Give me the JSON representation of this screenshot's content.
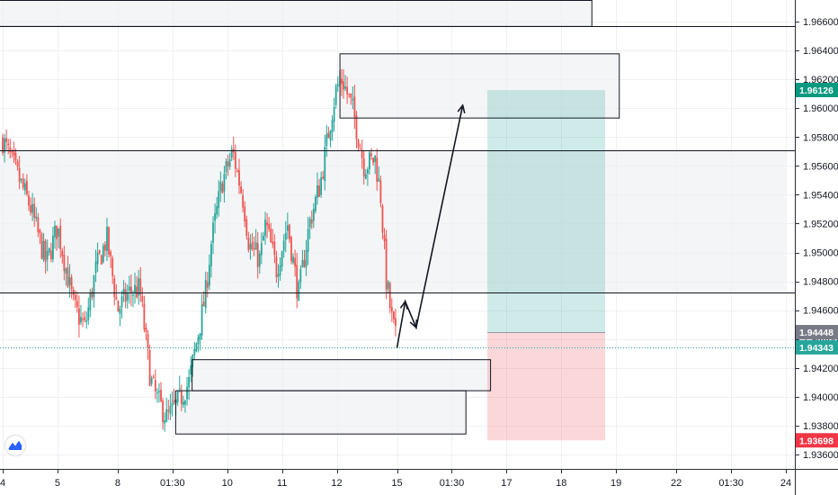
{
  "chart_data": {
    "type": "candlestick",
    "y_axis": {
      "range": [
        1.935,
        1.9675
      ],
      "ticks": [
        "1.96600",
        "1.96400",
        "1.96200",
        "1.96000",
        "1.95800",
        "1.95600",
        "1.95400",
        "1.95200",
        "1.95000",
        "1.94800",
        "1.94600",
        "1.94400",
        "1.94200",
        "1.94000",
        "1.93800",
        "1.93600"
      ]
    },
    "x_axis": {
      "ticks": [
        {
          "label": "4",
          "x": 0
        },
        {
          "label": "5",
          "x": 10
        },
        {
          "label": "8",
          "x": 21
        },
        {
          "label": "01:30",
          "x": 31
        },
        {
          "label": "10",
          "x": 41
        },
        {
          "label": "11",
          "x": 51
        },
        {
          "label": "12",
          "x": 61
        },
        {
          "label": "15",
          "x": 72
        },
        {
          "label": "01:30",
          "x": 82
        },
        {
          "label": "17",
          "x": 92
        },
        {
          "label": "18",
          "x": 102
        },
        {
          "label": "19",
          "x": 112
        },
        {
          "label": "22",
          "x": 123
        },
        {
          "label": "01:30",
          "x": 133
        },
        {
          "label": "24",
          "x": 143
        }
      ],
      "range": [
        0,
        143
      ]
    },
    "price_badges": [
      {
        "label": "1.96126",
        "value": 1.96126,
        "color": "#089981"
      },
      {
        "label": "1.94448",
        "value": 1.94448,
        "color": "#787b86"
      },
      {
        "label": "1.94343",
        "value": 1.94343,
        "color": "#26a69a"
      },
      {
        "label": "1.93698",
        "value": 1.93698,
        "color": "#f23645"
      }
    ],
    "horizontal_lines": [
      1.9657,
      1.9571,
      1.9472
    ],
    "current_price_line": 1.94343,
    "zones": [
      {
        "x0": -1,
        "x1": 107.5,
        "y0": 1.9657,
        "y1": 1.9675
      },
      {
        "x0": 61.5,
        "x1": 112.5,
        "y0": 1.95935,
        "y1": 1.9638
      },
      {
        "x0": -1,
        "x1": 143,
        "y0": 1.9472,
        "y1": 1.9571
      },
      {
        "x0": 34.5,
        "x1": 89,
        "y0": 1.94045,
        "y1": 1.9426
      },
      {
        "x0": 31.5,
        "x1": 84.5,
        "y0": 1.93745,
        "y1": 1.94045
      }
    ],
    "position": {
      "x0": 88.5,
      "x1": 110,
      "entry": 1.94448,
      "target": 1.96126,
      "stop": 1.93698,
      "profit_color": "#26a69a",
      "loss_color": "#f23645"
    },
    "projection_path": [
      [
        72,
        1.9434
      ],
      [
        73.5,
        1.9466
      ],
      [
        75.5,
        1.9448
      ],
      [
        84,
        1.9602
      ]
    ],
    "candle_colors": {
      "up": "#26a69a",
      "down": "#ef5350"
    },
    "candle_anchors": [
      [
        0,
        1.9578
      ],
      [
        2,
        1.956
      ],
      [
        5,
        1.9532
      ],
      [
        8,
        1.9492
      ],
      [
        10,
        1.9518
      ],
      [
        13,
        1.9462
      ],
      [
        15,
        1.9448
      ],
      [
        17,
        1.9488
      ],
      [
        19,
        1.951
      ],
      [
        21,
        1.946
      ],
      [
        23,
        1.9472
      ],
      [
        25,
        1.9475
      ],
      [
        27,
        1.9412
      ],
      [
        28,
        1.94
      ],
      [
        30,
        1.9385
      ],
      [
        32,
        1.9396
      ],
      [
        34,
        1.941
      ],
      [
        35,
        1.943
      ],
      [
        37,
        1.947
      ],
      [
        38,
        1.9505
      ],
      [
        40,
        1.9548
      ],
      [
        42,
        1.957
      ],
      [
        44,
        1.9535
      ],
      [
        45,
        1.9505
      ],
      [
        47,
        1.9495
      ],
      [
        48,
        1.952
      ],
      [
        50,
        1.9488
      ],
      [
        52,
        1.952
      ],
      [
        54,
        1.947
      ],
      [
        56,
        1.952
      ],
      [
        58,
        1.9548
      ],
      [
        60,
        1.9595
      ],
      [
        61,
        1.9615
      ],
      [
        62,
        1.962
      ],
      [
        64,
        1.9598
      ],
      [
        66,
        1.956
      ],
      [
        68,
        1.9565
      ],
      [
        69,
        1.954
      ],
      [
        70,
        1.9482
      ],
      [
        71,
        1.9455
      ],
      [
        72,
        1.9436
      ]
    ]
  },
  "brand": {
    "icon": "tradingview-icon"
  }
}
